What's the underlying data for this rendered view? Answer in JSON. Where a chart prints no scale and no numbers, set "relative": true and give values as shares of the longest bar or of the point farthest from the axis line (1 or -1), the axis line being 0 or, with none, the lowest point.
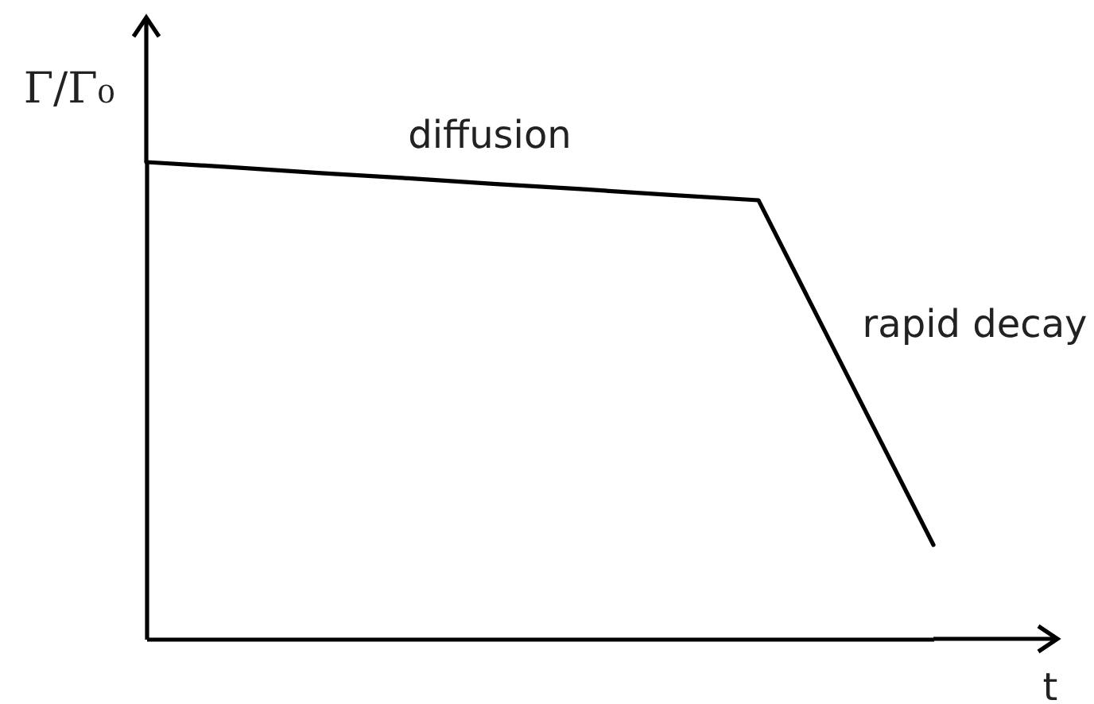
{
  "chart_data": {
    "type": "line",
    "relative": true,
    "xlabel": "t",
    "ylabel": "Γ/Γ₀",
    "categories": [
      null,
      null,
      null,
      null,
      null,
      null,
      null,
      null,
      null,
      null
    ],
    "values": [
      1,
      0.989,
      0.977,
      0.966,
      0.954,
      0.943,
      0.931,
      0.92,
      0.558,
      0.197
    ],
    "color": "#000000",
    "annotations": [
      "diffusion",
      "rapid decay"
    ]
  }
}
